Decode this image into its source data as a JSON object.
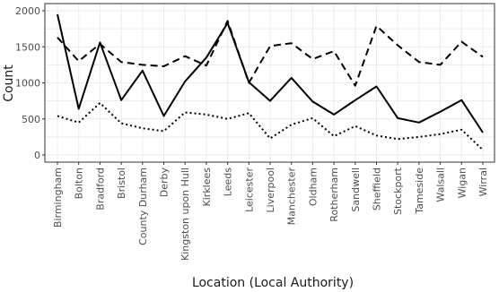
{
  "chart_data": {
    "type": "line",
    "xlabel": "Location (Local Authority)",
    "ylabel": "Count",
    "ylim": [
      0,
      2000
    ],
    "yticks": [
      0,
      500,
      1000,
      1500,
      2000
    ],
    "grid": true,
    "categories": [
      "Birmingham",
      "Bolton",
      "Bradford",
      "Bristol",
      "County Durham",
      "Derby",
      "Kingston upon Hull",
      "Kirklees",
      "Leeds",
      "Leicester",
      "Liverpool",
      "Manchester",
      "Oldham",
      "Rotherham",
      "Sandwell",
      "Sheffield",
      "Stockport",
      "Tameside",
      "Walsall",
      "Wigan",
      "Wirral"
    ],
    "series": [
      {
        "style": "solid",
        "values": [
          1950,
          640,
          1560,
          760,
          1170,
          540,
          1020,
          1350,
          1830,
          1010,
          750,
          1070,
          740,
          560,
          760,
          950,
          510,
          450,
          600,
          760,
          310
        ]
      },
      {
        "style": "dashed",
        "values": [
          1630,
          1300,
          1540,
          1290,
          1250,
          1230,
          1370,
          1240,
          1860,
          1000,
          1510,
          1550,
          1330,
          1440,
          960,
          1790,
          1520,
          1290,
          1250,
          1570,
          1360
        ]
      },
      {
        "style": "dotted",
        "values": [
          540,
          450,
          720,
          440,
          370,
          330,
          590,
          560,
          500,
          580,
          230,
          420,
          510,
          260,
          400,
          270,
          220,
          250,
          290,
          350,
          70
        ]
      }
    ]
  },
  "colors": {
    "line": "#000000",
    "grid": "#ebebeb",
    "border": "#333333"
  }
}
